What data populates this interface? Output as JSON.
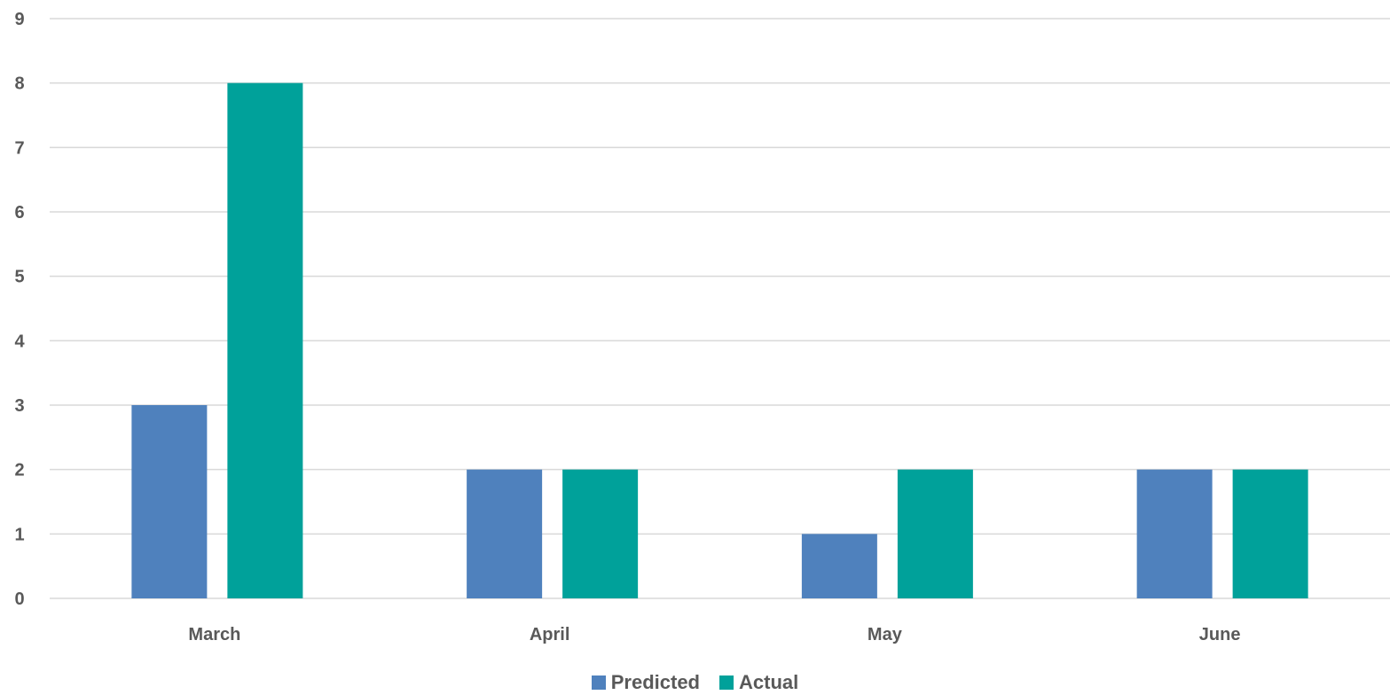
{
  "chart_data": {
    "type": "bar",
    "categories": [
      "March",
      "April",
      "May",
      "June"
    ],
    "series": [
      {
        "name": "Predicted",
        "values": [
          3,
          2,
          1,
          2
        ],
        "color": "#4f81bd"
      },
      {
        "name": "Actual",
        "values": [
          8,
          2,
          2,
          2
        ],
        "color": "#00a19a"
      }
    ],
    "ylim": [
      0,
      9
    ],
    "yticks": [
      "0",
      "1",
      "2",
      "3",
      "4",
      "5",
      "6",
      "7",
      "8",
      "9"
    ],
    "grid": true,
    "gridline_color": "#d9d9d9",
    "tick_label_color": "#595959",
    "legend_position": "bottom"
  }
}
